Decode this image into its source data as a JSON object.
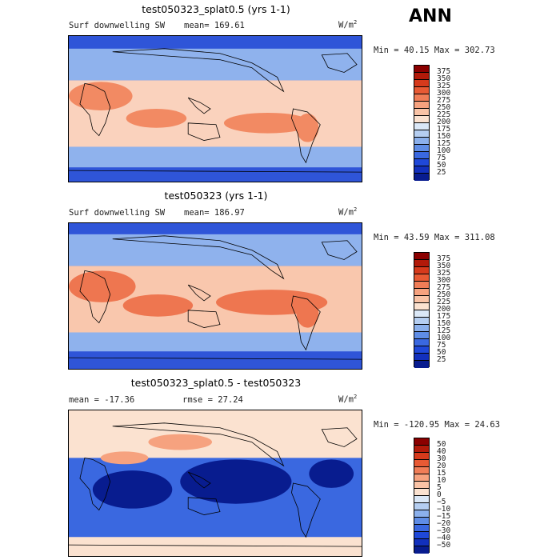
{
  "season_label": "ANN",
  "panels": [
    {
      "title": "test050323_splat0.5 (yrs 1-1)",
      "left_label": "Surf downwelling SW",
      "mean_label": "mean= 169.61",
      "units_base": "W/m",
      "units_exp": "2",
      "minmax": "Min =  40.15 Max = 302.73",
      "levels": [
        "375",
        "350",
        "325",
        "300",
        "275",
        "250",
        "225",
        "200",
        "175",
        "150",
        "125",
        "100",
        "75",
        "50",
        "25"
      ],
      "colors": [
        "#8b0000",
        "#b21a0a",
        "#d63a1c",
        "#e85a34",
        "#f07d57",
        "#f6a27f",
        "#f9c3a6",
        "#fbe2d0",
        "#dbe8f7",
        "#b5cef1",
        "#8bb0ec",
        "#5f8de6",
        "#3a68e0",
        "#1f48d9",
        "#1230bd",
        "#081c8f"
      ],
      "map_colors": {
        "high": "#f28a63",
        "mid": "#fad2bd",
        "low": "#8fb2ed",
        "verylow": "#2f55d8"
      }
    },
    {
      "title": "test050323 (yrs 1-1)",
      "left_label": "Surf downwelling SW",
      "mean_label": "mean= 186.97",
      "units_base": "W/m",
      "units_exp": "2",
      "minmax": "Min =  43.59 Max = 311.08",
      "levels": [
        "375",
        "350",
        "325",
        "300",
        "275",
        "250",
        "225",
        "200",
        "175",
        "150",
        "125",
        "100",
        "75",
        "50",
        "25"
      ],
      "colors": [
        "#8b0000",
        "#b21a0a",
        "#d63a1c",
        "#e85a34",
        "#f07d57",
        "#f6a27f",
        "#f9c3a6",
        "#fbe2d0",
        "#dbe8f7",
        "#b5cef1",
        "#8bb0ec",
        "#5f8de6",
        "#3a68e0",
        "#1f48d9",
        "#1230bd",
        "#081c8f"
      ],
      "map_colors": {
        "high": "#ee7650",
        "mid": "#f9c7ad",
        "low": "#8fb2ed",
        "verylow": "#2f55d8"
      }
    },
    {
      "title": "test050323_splat0.5 - test050323",
      "left_label": "mean = -17.36",
      "mean_label": "rmse =  27.24",
      "units_base": "W/m",
      "units_exp": "2",
      "minmax": "Min = -120.95 Max =  24.63",
      "levels": [
        "50",
        "40",
        "30",
        "20",
        "15",
        "10",
        "5",
        "0",
        "−5",
        "−10",
        "−15",
        "−20",
        "−30",
        "−40",
        "−50"
      ],
      "colors": [
        "#8b0000",
        "#b21a0a",
        "#d63a1c",
        "#e85a34",
        "#f07d57",
        "#f6a27f",
        "#f9c3a6",
        "#fbe2d0",
        "#dbe8f7",
        "#b5cef1",
        "#8bb0ec",
        "#5f8de6",
        "#3a68e0",
        "#1f48d9",
        "#1230bd",
        "#081c8f"
      ],
      "map_colors": {
        "high": "#f6a27f",
        "mid": "#fbe2d0",
        "low": "#3a68e0",
        "verylow": "#081c8f"
      }
    }
  ]
}
